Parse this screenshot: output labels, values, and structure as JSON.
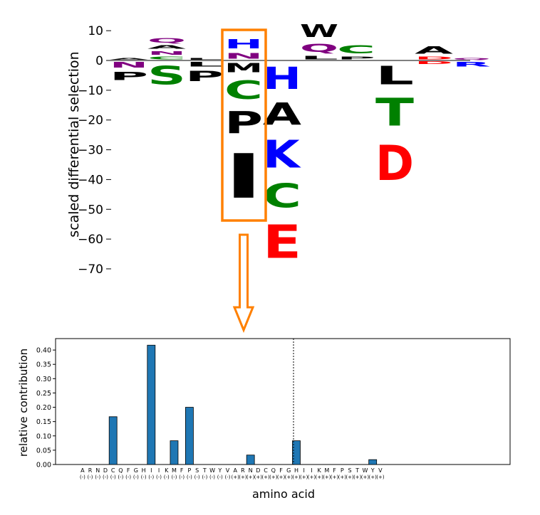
{
  "chart_data": [
    {
      "type": "logo",
      "ylabel": "scaled differential selection",
      "ylim": [
        -75,
        12
      ],
      "yticks": [
        "10",
        "0",
        "−10",
        "−20",
        "−30",
        "−40",
        "−50",
        "−60",
        "−70"
      ],
      "highlight_site_index": 3,
      "colors": {
        "black": "#000000",
        "green": "#008000",
        "blue": "#0000ff",
        "red": "#ff0000",
        "purple": "#800080",
        "highlight": "#ff8000"
      },
      "sites": [
        {
          "pos": [
            {
              "aa": "A",
              "value": 1.0,
              "color": "black"
            }
          ],
          "neg": [
            {
              "aa": "N",
              "value": 3.0,
              "color": "purple"
            },
            {
              "aa": "P",
              "value": 4.5,
              "color": "black"
            }
          ]
        },
        {
          "pos": [
            {
              "aa": "C",
              "value": 1.5,
              "color": "green"
            },
            {
              "aa": "N",
              "value": 2.0,
              "color": "purple"
            },
            {
              "aa": "A",
              "value": 2.0,
              "color": "black"
            },
            {
              "aa": "Q",
              "value": 2.5,
              "color": "purple"
            }
          ],
          "neg": [
            {
              "aa": "S",
              "value": 10.0,
              "color": "green"
            }
          ]
        },
        {
          "pos": [
            {
              "aa": "L",
              "value": 1.0,
              "color": "black"
            }
          ],
          "neg": [
            {
              "aa": "L",
              "value": 2.5,
              "color": "black"
            },
            {
              "aa": "P",
              "value": 5.5,
              "color": "black"
            }
          ]
        },
        {
          "pos": [
            {
              "aa": "N",
              "value": 3.0,
              "color": "purple"
            },
            {
              "aa": "H",
              "value": 5.0,
              "color": "blue"
            }
          ],
          "neg": [
            {
              "aa": "M",
              "value": 5.0,
              "color": "black"
            },
            {
              "aa": "C",
              "value": 10.0,
              "color": "green"
            },
            {
              "aa": "P",
              "value": 12.0,
              "color": "black"
            },
            {
              "aa": "I",
              "value": 24.0,
              "color": "black"
            }
          ]
        },
        {
          "pos": [],
          "neg": [
            {
              "aa": "H",
              "value": 12.0,
              "color": "blue"
            },
            {
              "aa": "A",
              "value": 12.0,
              "color": "black"
            },
            {
              "aa": "K",
              "value": 15.0,
              "color": "blue"
            },
            {
              "aa": "C",
              "value": 13.0,
              "color": "green"
            },
            {
              "aa": "E",
              "value": 18.0,
              "color": "red"
            }
          ]
        },
        {
          "pos": [
            {
              "aa": "L",
              "value": 2.0,
              "color": "black"
            },
            {
              "aa": "Q",
              "value": 4.5,
              "color": "purple"
            },
            {
              "aa": "W",
              "value": 7.0,
              "color": "black"
            }
          ],
          "neg": []
        },
        {
          "pos": [
            {
              "aa": "P",
              "value": 1.5,
              "color": "black"
            },
            {
              "aa": "C",
              "value": 4.5,
              "color": "green"
            }
          ],
          "neg": []
        },
        {
          "pos": [],
          "neg": [
            {
              "aa": "L",
              "value": 10.0,
              "color": "black"
            },
            {
              "aa": "T",
              "value": 15.0,
              "color": "green"
            },
            {
              "aa": "D",
              "value": 19.0,
              "color": "red"
            }
          ]
        },
        {
          "pos": [
            {
              "aa": "D",
              "value": 1.5,
              "color": "red"
            },
            {
              "aa": "A",
              "value": 4.0,
              "color": "black"
            }
          ],
          "neg": [
            {
              "aa": "D",
              "value": 1.5,
              "color": "red"
            }
          ]
        },
        {
          "pos": [
            {
              "aa": "Q",
              "value": 1.0,
              "color": "purple"
            }
          ],
          "neg": [
            {
              "aa": "R",
              "value": 2.5,
              "color": "blue"
            }
          ]
        }
      ]
    },
    {
      "type": "bar",
      "xlabel": "amino acid",
      "ylabel": "relative contribution",
      "ylim": [
        0,
        0.44
      ],
      "yticks": [
        "0.00",
        "0.05",
        "0.10",
        "0.15",
        "0.20",
        "0.25",
        "0.30",
        "0.35",
        "0.40"
      ],
      "bar_color": "#1f77b4",
      "divider_after_index": 19,
      "categories": [
        "A",
        "R",
        "N",
        "D",
        "C",
        "Q",
        "F",
        "G",
        "H",
        "I",
        "I",
        "K",
        "M",
        "F",
        "P",
        "S",
        "T",
        "W",
        "Y",
        "V",
        "A",
        "R",
        "N",
        "D",
        "C",
        "Q",
        "F",
        "G",
        "H",
        "I",
        "I",
        "K",
        "M",
        "F",
        "P",
        "S",
        "T",
        "W",
        "Y",
        "V"
      ],
      "signs": [
        "(-)",
        "(-)",
        "(-)",
        "(-)",
        "(-)",
        "(-)",
        "(-)",
        "(-)",
        "(-)",
        "(-)",
        "(-)",
        "(-)",
        "(-)",
        "(-)",
        "(-)",
        "(-)",
        "(-)",
        "(-)",
        "(-)",
        "(-)",
        "(+)",
        "(+)",
        "(+)",
        "(+)",
        "(+)",
        "(+)",
        "(+)",
        "(+)",
        "(+)",
        "(+)",
        "(+)",
        "(+)",
        "(+)",
        "(+)",
        "(+)",
        "(+)",
        "(+)",
        "(+)",
        "(+)",
        "(+)"
      ],
      "values": [
        0,
        0,
        0,
        0,
        0.167,
        0,
        0,
        0,
        0,
        0.417,
        0,
        0,
        0.083,
        0,
        0.2,
        0,
        0,
        0,
        0,
        0,
        0,
        0,
        0.033,
        0,
        0,
        0,
        0,
        0,
        0.083,
        0,
        0,
        0,
        0,
        0,
        0,
        0,
        0,
        0,
        0.017,
        0
      ]
    }
  ]
}
